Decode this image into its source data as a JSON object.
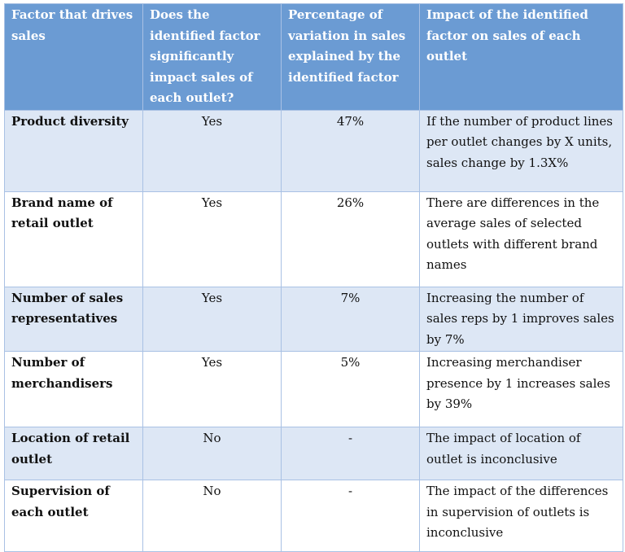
{
  "headers": [
    "Factor that drives sales",
    "Does the identified factor significantly impact sales of each outlet?",
    "Percentage of variation in sales explained by the identified factor",
    "Impact of the identified factor on sales of each outlet"
  ],
  "rows": [
    {
      "factor": "Product diversity",
      "significant": "Yes",
      "percentage": "47%",
      "impact": "If the number of product lines per outlet changes by X units, sales change by 1.3X%"
    },
    {
      "factor": "Brand name of retail outlet",
      "significant": "Yes",
      "percentage": "26%",
      "impact": "There are differences in the average sales of selected outlets with different brand names"
    },
    {
      "factor": "Number of sales representatives",
      "significant": "Yes",
      "percentage": "7%",
      "impact": "Increasing the number of sales reps by 1 improves sales by 7%"
    },
    {
      "factor": "Number of merchandisers",
      "significant": "Yes",
      "percentage": "5%",
      "impact": "Increasing merchandiser presence by 1 increases sales by 39%"
    },
    {
      "factor": "Location of retail outlet",
      "significant": "No",
      "percentage": "-",
      "impact": "The impact of location of outlet is inconclusive"
    },
    {
      "factor": "Supervision of each outlet",
      "significant": "No",
      "percentage": "-",
      "impact": "The impact of the differences in supervision of outlets is inconclusive"
    }
  ],
  "colors": {
    "header": "#6b9bd3",
    "row_alt": "#dde7f5",
    "border": "#a9c1e4"
  }
}
